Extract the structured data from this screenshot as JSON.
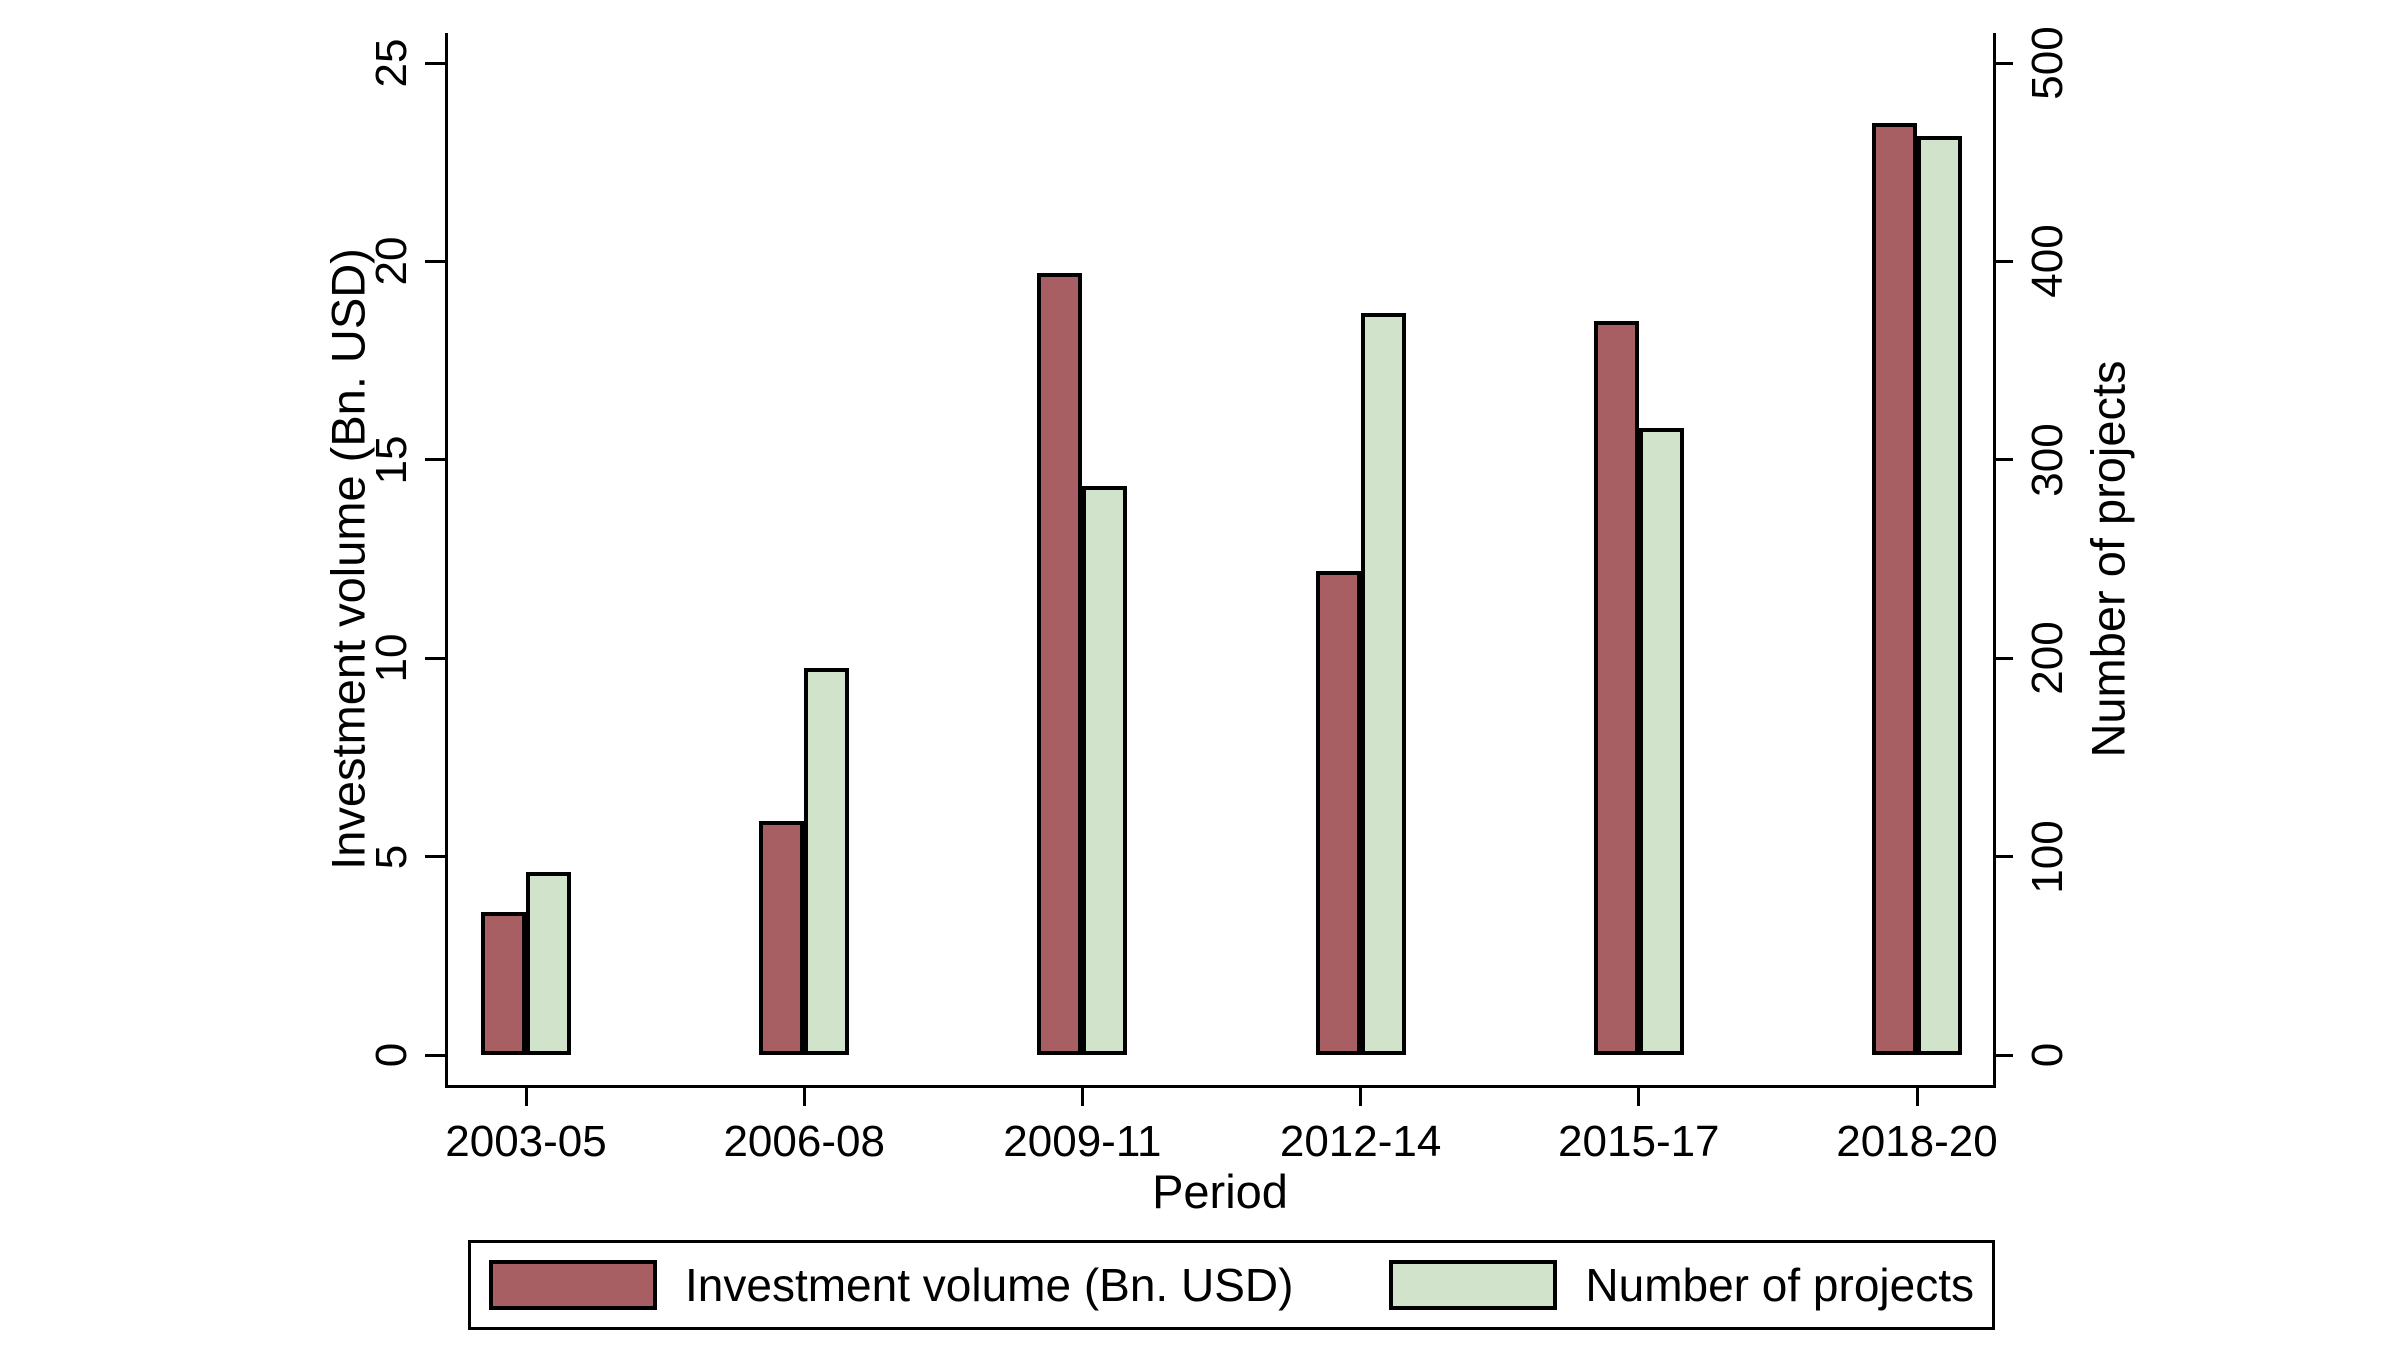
{
  "chart_data": {
    "type": "bar",
    "title": "",
    "categories": [
      "2003-05",
      "2006-08",
      "2009-11",
      "2012-14",
      "2015-17",
      "2018-20"
    ],
    "series": [
      {
        "name": "Investment volume (Bn. USD)",
        "axis": "left",
        "color": "#a75f63",
        "values": [
          3.6,
          5.9,
          19.7,
          12.2,
          18.5,
          23.5
        ]
      },
      {
        "name": "Number of projects",
        "axis": "right",
        "color": "#d2e3cc",
        "values": [
          92,
          195,
          287,
          374,
          316,
          463
        ]
      }
    ],
    "xlabel": "Period",
    "left_axis": {
      "label": "Investment volume (Bn. USD)",
      "min": 0,
      "max": 25,
      "ticks": [
        0,
        5,
        10,
        15,
        20,
        25
      ]
    },
    "right_axis": {
      "label": "Number of projects",
      "min": 0,
      "max": 500,
      "ticks": [
        0,
        100,
        200,
        300,
        400,
        500
      ]
    },
    "legend": {
      "position": "bottom",
      "entries": [
        "Investment volume (Bn. USD)",
        "Number of projects"
      ]
    },
    "layout_hints": {
      "grid": false,
      "bar_outline_color": "#000000",
      "axis_color": "#000000",
      "background": "#ffffff",
      "tick_label_rotation": "vertical"
    }
  }
}
